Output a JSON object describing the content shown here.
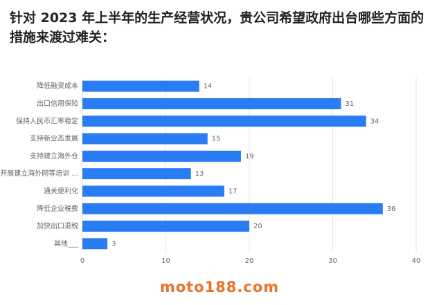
{
  "chart_data": {
    "type": "barh",
    "title": "针对 2023 年上半年的生产经营状况，贵公司希望政府出台哪些方面的措施来渡过难关：",
    "categories": [
      "降低融资成本",
      "出口信用保险",
      "保持人民币汇率稳定",
      "支持新业态发展",
      "支持建立海外仓",
      "开展建立海外网等培训 ...",
      "通关便利化",
      "降低企业税费",
      "加快出口退税",
      "其他___"
    ],
    "values": [
      14,
      31,
      34,
      15,
      19,
      13,
      17,
      36,
      20,
      3
    ],
    "color": "#2a7cf2",
    "xlim": [
      0,
      40
    ],
    "xticks": [
      0,
      10,
      20,
      30,
      40
    ],
    "grid": true,
    "watermark": "moto188.com"
  }
}
